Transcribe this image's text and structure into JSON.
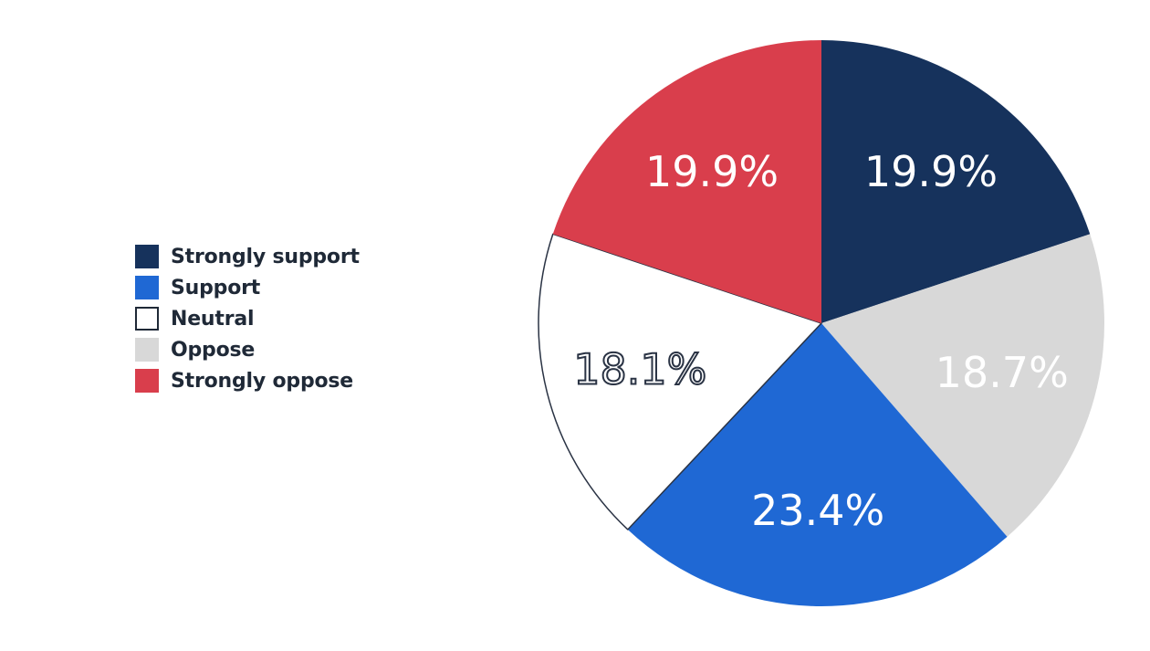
{
  "chart_data": {
    "type": "pie",
    "title": "",
    "categories": [
      "Strongly support",
      "Oppose",
      "Support",
      "Neutral",
      "Strongly oppose"
    ],
    "values": [
      19.9,
      18.7,
      23.4,
      18.1,
      19.9
    ],
    "data_labels": [
      "19.9%",
      "18.7%",
      "23.4%",
      "18.1%",
      "19.9%"
    ],
    "colors": [
      "#16325c",
      "#d8d8d8",
      "#1f68d4",
      "#ffffff",
      "#d93e4c"
    ],
    "label_colors": [
      "#ffffff",
      "#ffffff",
      "#ffffff",
      "outline-dark",
      "#ffffff"
    ],
    "start_angle": "12 o'clock",
    "direction": "clockwise",
    "legend_position": "left",
    "legend": [
      {
        "label": "Strongly support",
        "color": "#16325c"
      },
      {
        "label": "Support",
        "color": "#1f68d4"
      },
      {
        "label": "Neutral",
        "color": "#ffffff",
        "outlined": true
      },
      {
        "label": "Oppose",
        "color": "#d8d8d8"
      },
      {
        "label": "Strongly oppose",
        "color": "#d93e4c"
      }
    ]
  }
}
